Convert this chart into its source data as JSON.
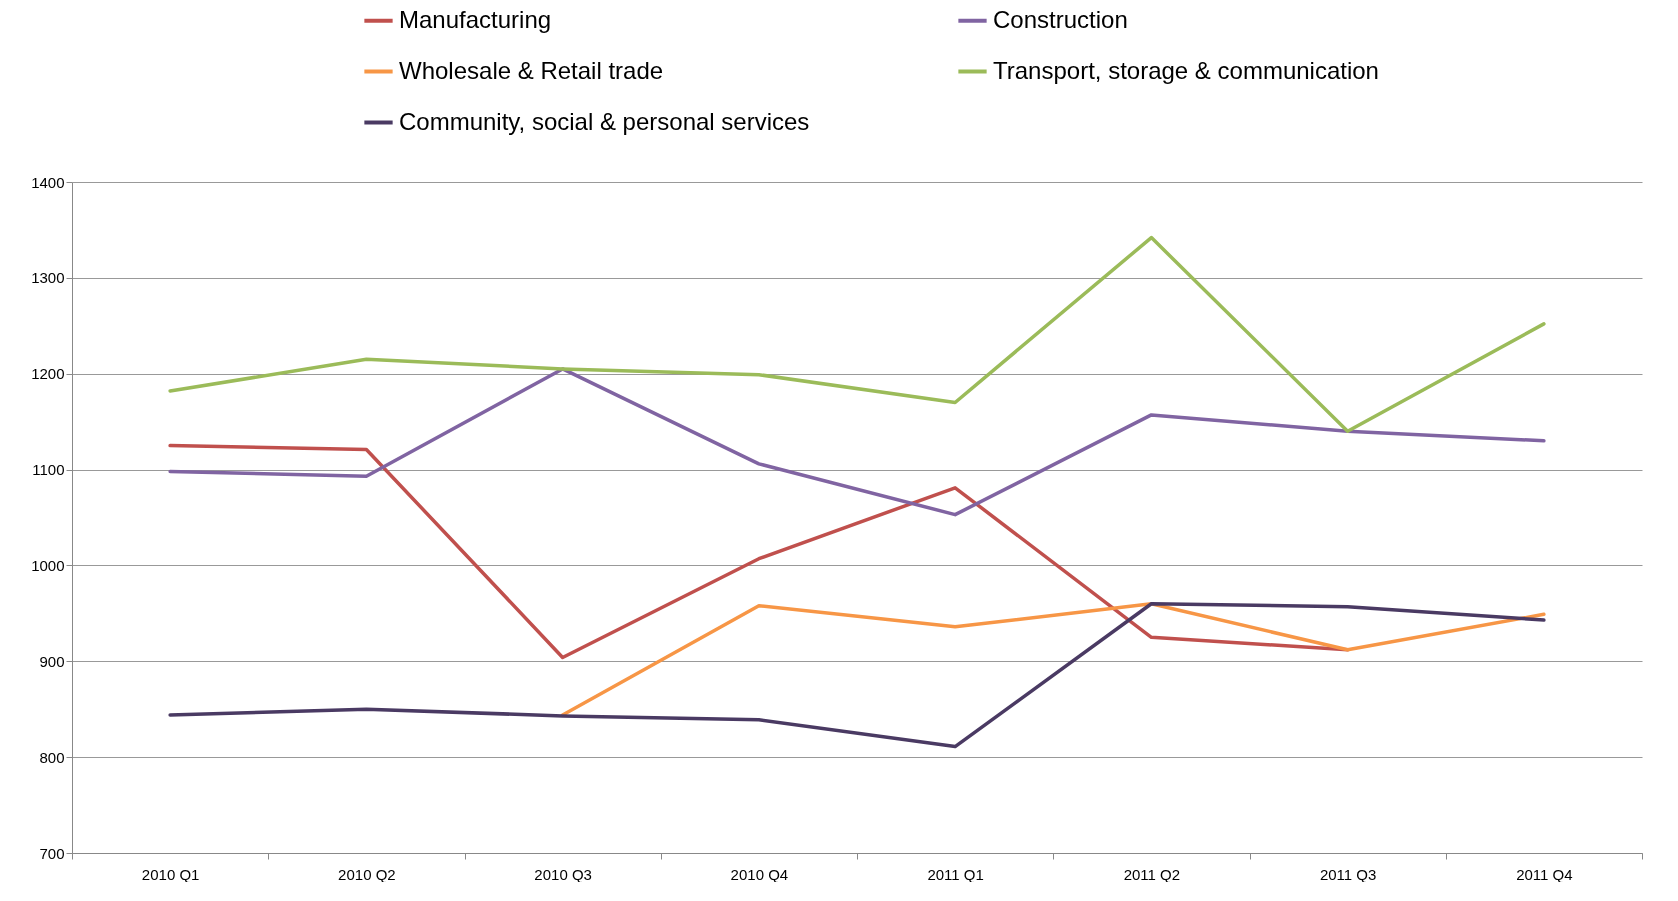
{
  "chart_data": {
    "type": "line",
    "categories": [
      "2010 Q1",
      "2010 Q2",
      "2010 Q3",
      "2010 Q4",
      "2011 Q1",
      "2011 Q2",
      "2011 Q3",
      "2011 Q4"
    ],
    "series": [
      {
        "name": "Manufacturing",
        "color": "#c0504d",
        "values": [
          1125,
          1121,
          904,
          1007,
          1081,
          925,
          912,
          null
        ]
      },
      {
        "name": "Construction",
        "color": "#8064a2",
        "values": [
          1098,
          1093,
          1205,
          1106,
          1053,
          1157,
          1140,
          1130
        ]
      },
      {
        "name": "Wholesale & Retail trade",
        "color": "#f79646",
        "values": [
          null,
          null,
          844,
          958,
          936,
          960,
          912,
          949
        ]
      },
      {
        "name": "Transport, storage & communication",
        "color": "#9bbb59",
        "values": [
          1182,
          1215,
          1205,
          1199,
          1170,
          1342,
          1140,
          1252
        ]
      },
      {
        "name": "Community, social & personal services",
        "color": "#4a3a63",
        "values": [
          844,
          850,
          843,
          839,
          811,
          960,
          957,
          943
        ]
      }
    ],
    "ylim": [
      700,
      1400
    ],
    "yticks": [
      700,
      800,
      900,
      1000,
      1100,
      1200,
      1300,
      1400
    ],
    "grid": "y",
    "legend": "top",
    "marker": "none",
    "line_style": "solid"
  }
}
